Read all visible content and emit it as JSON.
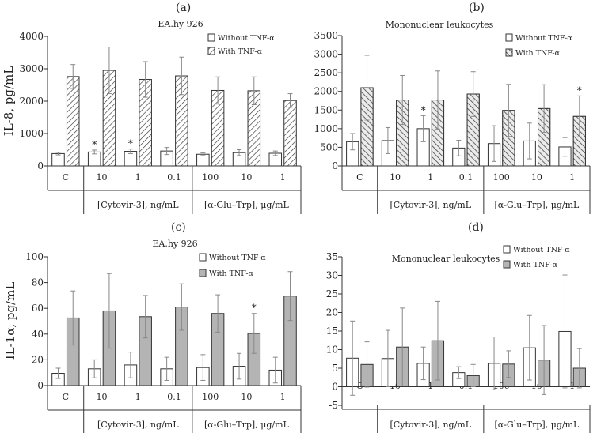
{
  "chart_data": [
    {
      "panel": "(a)",
      "type": "bar",
      "title": "EA.hy 926",
      "ylabel": "IL-8, pg/mL",
      "ylim": [
        0,
        4000
      ],
      "yticks": [
        0,
        1000,
        2000,
        3000,
        4000
      ],
      "categories": [
        "C",
        "10",
        "1",
        "0.1",
        "100",
        "10",
        "1"
      ],
      "groups": [
        {
          "label": "",
          "from": 0,
          "to": 0
        },
        {
          "label": "[Cytovir-3], ng/mL",
          "from": 1,
          "to": 3
        },
        {
          "label": "[α-Glu–Trp], μg/mL",
          "from": 4,
          "to": 6
        }
      ],
      "legend_position": "top-right",
      "series": [
        {
          "name": "Without TNF-α",
          "fill": "white",
          "values": [
            380,
            430,
            450,
            460,
            360,
            410,
            390
          ],
          "errors": [
            40,
            60,
            70,
            110,
            40,
            90,
            70
          ],
          "stars": [
            false,
            true,
            true,
            false,
            false,
            false,
            false
          ]
        },
        {
          "name": "With TNF-α",
          "fill": "hatch",
          "values": [
            2760,
            2950,
            2670,
            2780,
            2330,
            2320,
            2020
          ],
          "errors": [
            370,
            720,
            550,
            580,
            420,
            430,
            210
          ],
          "stars": [
            false,
            false,
            false,
            false,
            false,
            false,
            false
          ]
        }
      ]
    },
    {
      "panel": "(b)",
      "type": "bar",
      "title": "Mononuclear  leukocytes",
      "ylabel": "",
      "ylim": [
        0,
        3500
      ],
      "yticks": [
        0,
        500,
        1000,
        1500,
        2000,
        2500,
        3000,
        3500
      ],
      "categories": [
        "C",
        "10",
        "1",
        "0.1",
        "100",
        "10",
        "1"
      ],
      "groups": [
        {
          "label": "",
          "from": 0,
          "to": 0
        },
        {
          "label": "[Cytovir-3], ng/mL",
          "from": 1,
          "to": 3
        },
        {
          "label": "[α-Glu–Trp], μg/mL",
          "from": 4,
          "to": 6
        }
      ],
      "legend_position": "top-right",
      "series": [
        {
          "name": "Without TNF-α",
          "fill": "white",
          "values": [
            650,
            680,
            1000,
            480,
            600,
            670,
            510
          ],
          "errors": [
            220,
            350,
            350,
            210,
            480,
            480,
            250
          ],
          "stars": [
            false,
            false,
            true,
            false,
            false,
            false,
            false
          ]
        },
        {
          "name": "With TNF-α",
          "fill": "gray-hatch",
          "values": [
            2100,
            1770,
            1770,
            1930,
            1490,
            1540,
            1330
          ],
          "errors": [
            870,
            660,
            780,
            600,
            700,
            640,
            550
          ],
          "stars": [
            false,
            false,
            false,
            false,
            false,
            false,
            true
          ]
        }
      ]
    },
    {
      "panel": "(c)",
      "type": "bar",
      "title": "EA.hy 926",
      "ylabel": "IL-1α, pg/mL",
      "ylim": [
        0,
        100
      ],
      "yticks": [
        0,
        20,
        40,
        60,
        80,
        100
      ],
      "categories": [
        "C",
        "10",
        "1",
        "0.1",
        "100",
        "10",
        "1"
      ],
      "groups": [
        {
          "label": "",
          "from": 0,
          "to": 0
        },
        {
          "label": "[Cytovir-3], ng/mL",
          "from": 1,
          "to": 3
        },
        {
          "label": "[α-Glu–Trp], μg/mL",
          "from": 4,
          "to": 6
        }
      ],
      "legend_position": "top-right",
      "series": [
        {
          "name": "Without TNF-α",
          "fill": "white",
          "values": [
            9.5,
            13,
            16,
            13,
            14,
            15,
            12
          ],
          "errors": [
            4,
            7,
            10,
            9,
            10,
            10,
            10
          ],
          "stars": [
            false,
            false,
            false,
            false,
            false,
            false,
            false
          ]
        },
        {
          "name": "With TNF-α",
          "fill": "gray",
          "values": [
            52.5,
            58,
            53.5,
            61,
            56,
            40.5,
            69.5
          ],
          "errors": [
            21,
            29,
            16.5,
            18,
            14.5,
            15.5,
            19
          ],
          "stars": [
            false,
            false,
            false,
            false,
            false,
            true,
            false
          ]
        }
      ]
    },
    {
      "panel": "(d)",
      "type": "bar",
      "title": "Mononuclear leukocytes",
      "ylabel": "",
      "ylim": [
        -5,
        35
      ],
      "yticks": [
        -5,
        0,
        5,
        10,
        15,
        20,
        25,
        30,
        35
      ],
      "categories": [
        "C",
        "10",
        "1",
        "0.1",
        "100",
        "10",
        "1"
      ],
      "groups": [
        {
          "label": "",
          "from": 0,
          "to": 0
        },
        {
          "label": "[Cytovir-3], ng/mL",
          "from": 1,
          "to": 3
        },
        {
          "label": "[α-Glu–Trp], μg/mL",
          "from": 4,
          "to": 6
        }
      ],
      "legend_position": "top-right",
      "series": [
        {
          "name": "Without TNF-α",
          "fill": "white",
          "values": [
            7.7,
            7.6,
            6.3,
            3.8,
            6.3,
            10.5,
            14.9
          ],
          "errors": [
            10,
            7.6,
            4.4,
            1.6,
            7.1,
            8.7,
            15.2
          ],
          "stars": [
            false,
            false,
            false,
            false,
            false,
            false,
            false
          ]
        },
        {
          "name": "With TNF-α",
          "fill": "gray",
          "values": [
            6.0,
            10.7,
            12.4,
            3.0,
            6.1,
            7.2,
            5.0
          ],
          "errors": [
            6.1,
            10.5,
            10.6,
            3.0,
            3.6,
            9.3,
            5.3
          ],
          "stars": [
            false,
            false,
            false,
            false,
            false,
            false,
            false
          ]
        }
      ]
    }
  ]
}
